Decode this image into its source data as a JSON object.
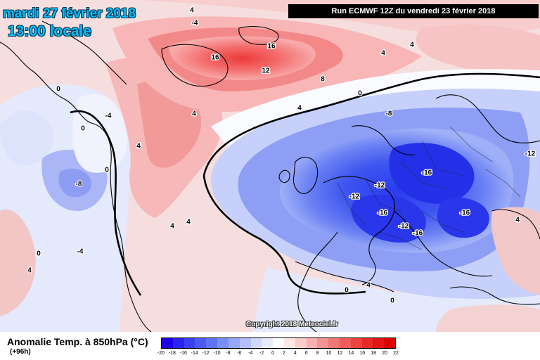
{
  "header": {
    "date": "mardi 27 février 2018",
    "time": "13:00 locale",
    "run": "Run ECMWF 12Z du vendredi 23 février 2018"
  },
  "copyright": "Copyright 2018 Meteociel.fr",
  "legend": {
    "title": "Anomalie Temp. à 850hPa (°C)",
    "lead_time": "(+96h)",
    "ticks": [
      "-20",
      "-18",
      "-16",
      "-14",
      "-12",
      "-10",
      "-8",
      "-6",
      "-4",
      "-2",
      "0",
      "2",
      "4",
      "6",
      "8",
      "10",
      "12",
      "14",
      "16",
      "18",
      "20",
      "22"
    ],
    "colors": [
      "#1e00e6",
      "#2a22ee",
      "#3b3ff0",
      "#4c5af2",
      "#5f74f4",
      "#7a8ff6",
      "#98a8f8",
      "#b5c0fa",
      "#d0d8fc",
      "#e8ecfe",
      "#ffffff",
      "#fde6e6",
      "#fbcccc",
      "#f8b0b0",
      "#f59494",
      "#f27878",
      "#ef5c5c",
      "#ec4242",
      "#e82a2a",
      "#e31515",
      "#dd0000"
    ]
  },
  "contour_labels": [
    {
      "id": "greenland-warm-16a",
      "value": "16"
    },
    {
      "id": "greenland-warm-16b",
      "value": "16"
    },
    {
      "id": "greenland-warm-12",
      "value": "12"
    },
    {
      "id": "greenland-warm-8",
      "value": "8"
    },
    {
      "id": "greenland-warm-4a",
      "value": "4"
    },
    {
      "id": "greenland-warm-4b",
      "value": "4"
    },
    {
      "id": "north-zero",
      "value": "0"
    },
    {
      "id": "europe-cold-8",
      "value": "-8"
    },
    {
      "id": "europe-cold-12a",
      "value": "-12"
    },
    {
      "id": "europe-cold-16a",
      "value": "-16"
    },
    {
      "id": "europe-cold-12b",
      "value": "-12"
    },
    {
      "id": "europe-cold-16b",
      "value": "-16"
    },
    {
      "id": "europe-cold-16c",
      "value": "-16"
    },
    {
      "id": "europe-cold-12c",
      "value": "-12"
    },
    {
      "id": "europe-cold-16d",
      "value": "-16"
    },
    {
      "id": "east-cold-12",
      "value": "-12"
    },
    {
      "id": "canada-cold-8",
      "value": "-8"
    },
    {
      "id": "canada-cold-4a",
      "value": "-4"
    },
    {
      "id": "canada-cold-4b",
      "value": "-4"
    },
    {
      "id": "canada-zero-a",
      "value": "0"
    },
    {
      "id": "canada-zero-b",
      "value": "0"
    },
    {
      "id": "canada-zero-c",
      "value": "0"
    },
    {
      "id": "atlantic-4a",
      "value": "4"
    },
    {
      "id": "atlantic-4b",
      "value": "4"
    },
    {
      "id": "atlantic-4c",
      "value": "4"
    },
    {
      "id": "atlantic-4d",
      "value": "4"
    },
    {
      "id": "east-4a",
      "value": "4"
    },
    {
      "id": "east-4b",
      "value": "4"
    },
    {
      "id": "east-4c",
      "value": "4"
    },
    {
      "id": "med-zero-a",
      "value": "0"
    },
    {
      "id": "med-zero-b",
      "value": "0"
    },
    {
      "id": "med-4",
      "value": "4"
    },
    {
      "id": "west-4",
      "value": "4"
    },
    {
      "id": "west-zero",
      "value": "0"
    },
    {
      "id": "west-minus4",
      "value": "-4"
    }
  ]
}
